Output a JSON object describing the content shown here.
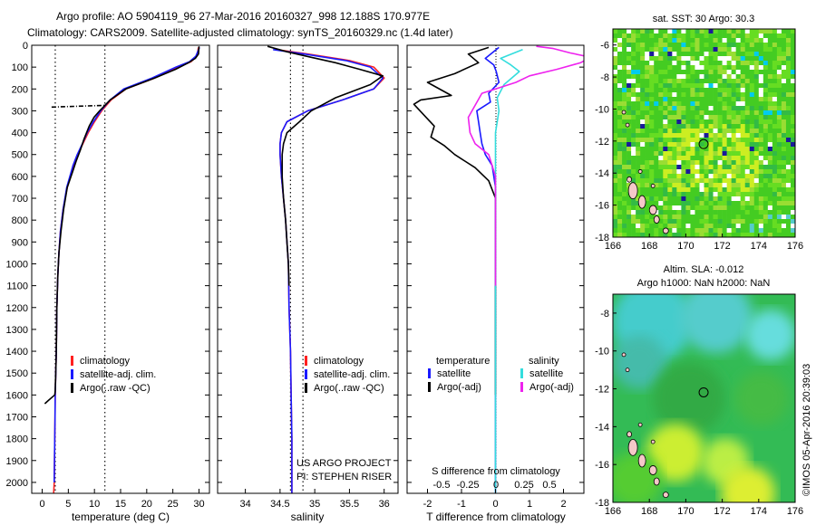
{
  "header": {
    "line1": "Argo profile: AO 5904119_96 27-Mar-2016 20160327_998 12.188S 170.977E",
    "line2": "Climatology: CARS2009. Satellite-adjusted climatology: synTS_20160329.nc (1.4d later)"
  },
  "credits": {
    "project_line1": "US ARGO PROJECT",
    "project_line2": "PI: STEPHEN RISER",
    "stamp": "©IMOS 05-Apr-2016 20:39:03"
  },
  "colors": {
    "climatology": "#ff2020",
    "satellite": "#1a1aff",
    "argo": "#000000",
    "satellite_s": "#33dddd",
    "argo_s": "#ee22ee"
  },
  "chart_data": [
    {
      "type": "line",
      "id": "temperature",
      "xlabel": "temperature (deg C)",
      "xlim": [
        -2,
        32
      ],
      "ylim": [
        2050,
        0
      ],
      "yticks": [
        0,
        100,
        200,
        300,
        400,
        500,
        600,
        700,
        800,
        900,
        1000,
        1100,
        1200,
        1300,
        1400,
        1500,
        1600,
        1700,
        1800,
        1900,
        2000
      ],
      "xticks": [
        0,
        5,
        10,
        15,
        20,
        25,
        30
      ],
      "ref_lines_x": [
        2.5,
        12
      ],
      "legend": [
        "climatology",
        "satellite-adj. clim.",
        "Argo(..raw -QC)"
      ],
      "series": [
        {
          "name": "climatology",
          "color_key": "climatology",
          "x": [
            29.9,
            29.6,
            28.5,
            26,
            21.5,
            16,
            13.2,
            11.4,
            10,
            8.8,
            7.8,
            6.8,
            6,
            4.8,
            4,
            3.5,
            3.2,
            3,
            2.8,
            2.7,
            2.6,
            2.5,
            2.45,
            2.4,
            2.35,
            2.3,
            2.2
          ],
          "y": [
            10,
            50,
            75,
            100,
            150,
            200,
            250,
            300,
            350,
            400,
            450,
            500,
            550,
            650,
            750,
            850,
            950,
            1050,
            1200,
            1400,
            1500,
            1600,
            1700,
            1800,
            1900,
            2000,
            2050
          ]
        },
        {
          "name": "satellite",
          "color_key": "satellite",
          "x": [
            30.1,
            29.4,
            28.2,
            25.6,
            21,
            15.6,
            13,
            11.2,
            9.8,
            8.6,
            7.7,
            6.7,
            5.9,
            4.7,
            4,
            3.5,
            3.2,
            3,
            2.8,
            2.7,
            2.6,
            2.5,
            2.45,
            2.4,
            2.35,
            2.3
          ],
          "y": [
            10,
            50,
            75,
            100,
            150,
            200,
            250,
            300,
            350,
            400,
            450,
            500,
            550,
            650,
            750,
            850,
            950,
            1050,
            1200,
            1400,
            1500,
            1600,
            1700,
            1800,
            1900,
            2000
          ]
        },
        {
          "name": "argo",
          "color_key": "argo",
          "x": [
            30,
            29.9,
            29.3,
            28,
            25.5,
            21.5,
            16,
            13,
            12,
            11,
            9.9,
            9,
            8,
            7.3,
            6.5,
            5.8,
            4.8,
            4.1,
            3.6,
            3.2,
            3,
            2.8,
            2.7,
            2.6,
            2.5,
            2.4
          ],
          "y": [
            5,
            40,
            60,
            80,
            110,
            150,
            200,
            250,
            275,
            300,
            330,
            370,
            430,
            480,
            530,
            580,
            650,
            750,
            850,
            950,
            1050,
            1200,
            1400,
            1500,
            1580,
            1600
          ]
        },
        {
          "name": "argo spike",
          "color_key": "argo",
          "dash": true,
          "x": [
            1.8,
            12
          ],
          "y": [
            283,
            275
          ]
        },
        {
          "name": "argo deep tail",
          "color_key": "argo",
          "x": [
            0.5,
            1.2,
            1.9,
            2.4
          ],
          "y": [
            1640,
            1625,
            1610,
            1600
          ]
        }
      ]
    },
    {
      "type": "line",
      "id": "salinity",
      "xlabel": "salinity",
      "xlim": [
        33.6,
        36.2
      ],
      "ylim": [
        2050,
        0
      ],
      "xticks": [
        34,
        34.5,
        35,
        35.5,
        36
      ],
      "ref_lines_x": [
        34.65,
        34.83
      ],
      "legend": [
        "climatology",
        "satellite-adj. clim.",
        "Argo(..raw -QC)"
      ],
      "series": [
        {
          "name": "climatology",
          "color_key": "climatology",
          "x": [
            34.45,
            34.9,
            35.5,
            35.85,
            36,
            35.85,
            35.4,
            34.9,
            34.6,
            34.52,
            34.5,
            34.5,
            34.52,
            34.55,
            34.58,
            34.6,
            34.62,
            34.63,
            34.65,
            34.66,
            34.67,
            34.67
          ],
          "y": [
            20,
            40,
            70,
            100,
            150,
            200,
            250,
            300,
            350,
            400,
            450,
            500,
            600,
            700,
            800,
            900,
            1000,
            1200,
            1400,
            1600,
            1800,
            2050
          ]
        },
        {
          "name": "satellite",
          "color_key": "satellite",
          "x": [
            34.4,
            34.85,
            35.45,
            35.8,
            35.98,
            35.85,
            35.4,
            34.9,
            34.6,
            34.52,
            34.5,
            34.5,
            34.52,
            34.55,
            34.58,
            34.6,
            34.62,
            34.63,
            34.65,
            34.66,
            34.67,
            34.67
          ],
          "y": [
            20,
            40,
            70,
            100,
            150,
            200,
            250,
            300,
            350,
            400,
            450,
            500,
            600,
            700,
            800,
            900,
            1000,
            1200,
            1400,
            1600,
            1800,
            2050
          ]
        },
        {
          "name": "argo",
          "color_key": "argo",
          "x": [
            34.32,
            34.6,
            34.95,
            35.3,
            35.65,
            35.98,
            35.8,
            35.3,
            34.95,
            34.78,
            34.6,
            34.55,
            34.53,
            34.53,
            34.55,
            34.58,
            34.6,
            34.62,
            34.63
          ],
          "y": [
            5,
            30,
            55,
            80,
            110,
            140,
            180,
            240,
            300,
            350,
            400,
            450,
            500,
            600,
            700,
            800,
            900,
            1000,
            1100
          ]
        }
      ]
    },
    {
      "type": "line",
      "id": "difference",
      "xlabel": "T difference from climatology",
      "xlabel_top": "S difference from climatology",
      "xlim": [
        -2.6,
        2.6
      ],
      "ylim": [
        2050,
        0
      ],
      "xticks": [
        -2,
        -1,
        0,
        1,
        2
      ],
      "xticks_s": [
        "-0.5",
        "-0.25",
        "0",
        "0.25",
        "0.5"
      ],
      "legend_headers": [
        "temperature",
        "salinity"
      ],
      "legend": [
        "satellite",
        "Argo(-adj)",
        "satellite",
        "Argo(-adj)"
      ],
      "series": [
        {
          "name": "temperature satellite",
          "color_key": "satellite",
          "x": [
            0.1,
            -0.3,
            -0.05,
            0.02,
            0.1,
            -0.2,
            -0.15,
            -0.55,
            -0.5,
            -0.45,
            -0.4,
            -0.3,
            -0.1,
            0,
            0,
            0,
            0,
            0
          ],
          "y": [
            10,
            60,
            90,
            120,
            170,
            220,
            260,
            300,
            350,
            400,
            450,
            500,
            550,
            650,
            800,
            1000,
            1500,
            2050
          ]
        },
        {
          "name": "temperature argo",
          "color_key": "argo",
          "x": [
            -0.2,
            -0.8,
            -0.5,
            -1.2,
            -2,
            -1.3,
            -2.2,
            -2.4,
            -2.1,
            -1.8,
            -1.9,
            -1.5,
            -1.2,
            -0.9,
            -0.6,
            -0.2,
            0,
            0,
            0
          ],
          "y": [
            10,
            40,
            80,
            130,
            170,
            230,
            250,
            270,
            320,
            370,
            420,
            460,
            500,
            530,
            560,
            620,
            700,
            1000,
            1600
          ]
        },
        {
          "name": "salinity satellite",
          "color_key": "satellite_s",
          "x": [
            0.8,
            0.15,
            0.45,
            0.7,
            0.25,
            0.05,
            0.1,
            0,
            0,
            0,
            0,
            0,
            0
          ],
          "y": [
            20,
            60,
            90,
            120,
            180,
            240,
            300,
            400,
            500,
            700,
            1000,
            1500,
            2050
          ]
        },
        {
          "name": "salinity argo",
          "color_key": "argo_s",
          "x": [
            1.2,
            1.7,
            2.2,
            2.8,
            2.5,
            1.8,
            1,
            0.6,
            -0.4,
            -0.8,
            -0.75,
            -0.6,
            -0.2,
            0,
            0
          ],
          "y": [
            5,
            15,
            35,
            55,
            80,
            110,
            140,
            170,
            220,
            330,
            400,
            450,
            500,
            600,
            1100
          ]
        }
      ]
    },
    {
      "type": "heatmap",
      "id": "sst_map",
      "title": "sat. SST: 30 Argo: 30.3",
      "xlim": [
        166,
        176
      ],
      "ylim": [
        -18,
        -5
      ],
      "xticks": [
        166,
        168,
        170,
        172,
        174,
        176
      ],
      "yticks": [
        -6,
        -8,
        -10,
        -12,
        -14,
        -16,
        -18
      ],
      "argo_position": [
        170.977,
        -12.188
      ]
    },
    {
      "type": "heatmap",
      "id": "sla_map",
      "title": "Altim. SLA: -0.012",
      "subtitle": "Argo h1000: NaN h2000: NaN",
      "xlim": [
        166,
        176
      ],
      "ylim": [
        -18,
        -7
      ],
      "xticks": [
        166,
        168,
        170,
        172,
        174,
        176
      ],
      "yticks": [
        -8,
        -10,
        -12,
        -14,
        -16,
        -18
      ],
      "argo_position": [
        170.977,
        -12.188
      ]
    }
  ]
}
